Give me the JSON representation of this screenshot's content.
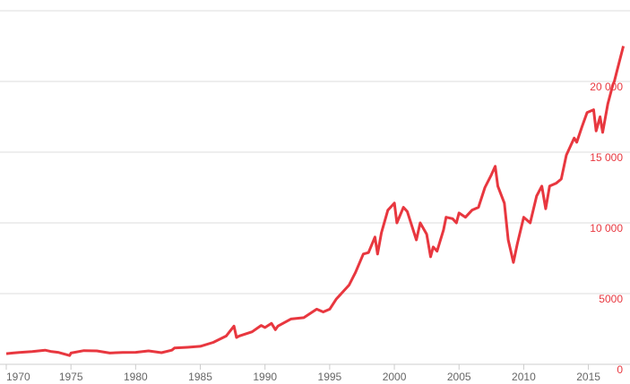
{
  "chart_data": {
    "type": "line",
    "x": [
      1970.0,
      1970.5,
      1971.0,
      1972.0,
      1973.0,
      1973.5,
      1974.0,
      1974.9,
      1975.0,
      1976.0,
      1977.0,
      1978.0,
      1979.0,
      1980.0,
      1981.0,
      1982.0,
      1982.8,
      1983.0,
      1984.0,
      1985.0,
      1986.0,
      1987.0,
      1987.6,
      1987.8,
      1988.0,
      1989.0,
      1989.7,
      1990.0,
      1990.5,
      1990.8,
      1991.0,
      1992.0,
      1993.0,
      1994.0,
      1994.5,
      1995.0,
      1995.5,
      1996.0,
      1996.5,
      1997.0,
      1997.6,
      1998.0,
      1998.5,
      1998.7,
      1999.0,
      1999.5,
      2000.0,
      2000.2,
      2000.7,
      2001.0,
      2001.7,
      2002.0,
      2002.5,
      2002.8,
      2003.0,
      2003.3,
      2003.8,
      2004.0,
      2004.5,
      2004.8,
      2005.0,
      2005.5,
      2006.0,
      2006.5,
      2007.0,
      2007.5,
      2007.8,
      2008.0,
      2008.5,
      2008.8,
      2009.0,
      2009.2,
      2009.5,
      2010.0,
      2010.5,
      2011.0,
      2011.4,
      2011.7,
      2012.0,
      2012.5,
      2012.9,
      2013.3,
      2013.9,
      2014.1,
      2014.5,
      2014.9,
      2015.4,
      2015.6,
      2015.9,
      2016.1,
      2016.5,
      2016.9,
      2017.0,
      2017.2,
      2017.7
    ],
    "series": [
      {
        "color": "#e8373f",
        "values": [
          750,
          800,
          840,
          900,
          1000,
          900,
          850,
          620,
          800,
          970,
          950,
          800,
          840,
          850,
          950,
          820,
          1000,
          1150,
          1200,
          1270,
          1550,
          2000,
          2700,
          1900,
          2000,
          2300,
          2750,
          2600,
          2900,
          2450,
          2700,
          3200,
          3300,
          3900,
          3700,
          3900,
          4600,
          5100,
          5600,
          6500,
          7800,
          7900,
          9000,
          7800,
          9300,
          10900,
          11400,
          10000,
          11100,
          10800,
          8800,
          10000,
          9200,
          7600,
          8300,
          8000,
          9500,
          10400,
          10300,
          10000,
          10700,
          10400,
          10900,
          11100,
          12500,
          13400,
          14000,
          12600,
          11400,
          8800,
          8000,
          7200,
          8500,
          10400,
          10000,
          11900,
          12600,
          11000,
          12600,
          12800,
          13100,
          14800,
          16000,
          15700,
          16800,
          17800,
          18000,
          16500,
          17500,
          16400,
          18400,
          19800,
          20000,
          20700,
          22500
        ]
      }
    ],
    "xlim": [
      1970,
      2017.8
    ],
    "xticks": [
      1970,
      1975,
      1980,
      1985,
      1990,
      1995,
      2000,
      2005,
      2010,
      2015
    ],
    "ylim": [
      0,
      25000
    ],
    "yticks": [
      0,
      5000,
      {
        "value": 10000,
        "label": "10 000"
      },
      {
        "value": 15000,
        "label": "15 000"
      },
      {
        "value": 20000,
        "label": "20 000"
      }
    ],
    "grid": true
  }
}
